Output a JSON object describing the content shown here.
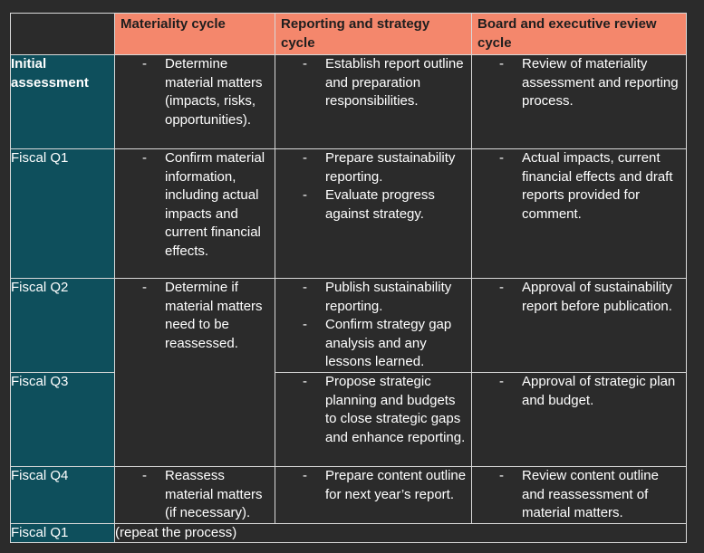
{
  "headers": {
    "materiality": "Materiality cycle",
    "reporting": "Reporting and strategy cycle",
    "board": "Board and executive review cycle"
  },
  "bullet": "-",
  "rows": [
    {
      "label": "Initial assessment",
      "materiality": [
        "Determine material matters (impacts, risks, opportunities)."
      ],
      "reporting": [
        "Establish report outline and preparation responsibilities."
      ],
      "board": [
        "Review of materiality assessment and reporting process."
      ]
    },
    {
      "label": "Fiscal Q1",
      "materiality": [
        "Confirm material information, including actual impacts and current financial effects."
      ],
      "reporting": [
        "Prepare sustainability reporting.",
        "Evaluate progress against strategy."
      ],
      "board": [
        "Actual impacts, current financial effects and draft reports provided for comment."
      ]
    },
    {
      "label": "Fiscal Q2",
      "materiality": [
        "Determine if material matters need to be reassessed."
      ],
      "reporting": [
        "Publish sustainability reporting.",
        "Confirm strategy gap analysis and any lessons learned."
      ],
      "board": [
        "Approval of sustainability report before publication."
      ]
    },
    {
      "label": "Fiscal Q3",
      "reporting": [
        "Propose strategic planning and budgets to close strategic gaps and enhance reporting."
      ],
      "board": [
        "Approval of strategic plan and budget."
      ]
    },
    {
      "label": "Fiscal Q4",
      "materiality": [
        "Reassess material matters (if necessary)."
      ],
      "reporting": [
        "Prepare content outline for next year’s report."
      ],
      "board": [
        "Review content outline and reassessment of material matters."
      ]
    },
    {
      "label": "Fiscal Q1",
      "note": "(repeat the process)"
    }
  ]
}
